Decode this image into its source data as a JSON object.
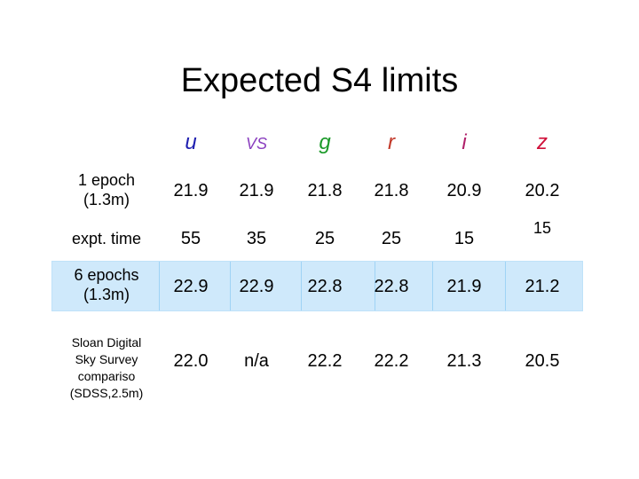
{
  "title": "Expected S4 limits",
  "columns": [
    {
      "label": "u",
      "color": "#1f1fb0"
    },
    {
      "label": "VS",
      "color": "#8a3fbf"
    },
    {
      "label": "g",
      "color": "#1c9a2a"
    },
    {
      "label": "r",
      "color": "#c23a2a"
    },
    {
      "label": "i",
      "color": "#b0206a"
    },
    {
      "label": "z",
      "color": "#d0103a"
    }
  ],
  "rows": [
    {
      "label_lines": [
        "1 epoch",
        "(1.3m)"
      ],
      "values": [
        "21.9",
        "21.9",
        "21.8",
        "21.8",
        "20.9",
        "20.2"
      ]
    },
    {
      "label_lines": [
        "expt. time"
      ],
      "values": [
        "55",
        "35",
        "25",
        "25",
        "15",
        "15"
      ]
    },
    {
      "label_lines": [
        "6 epochs",
        "(1.3m)"
      ],
      "values": [
        "22.9",
        "22.9",
        "22.8",
        "22.8",
        "21.9",
        "21.2"
      ],
      "highlight_color": "#cfe9fb"
    },
    {
      "label_lines": [
        "Sloan Digital",
        "Sky Survey",
        "compariso",
        "(SDSS,2.5m)"
      ],
      "values": [
        "22.0",
        "n/a",
        "22.2",
        "22.2",
        "21.3",
        "20.5"
      ]
    }
  ]
}
